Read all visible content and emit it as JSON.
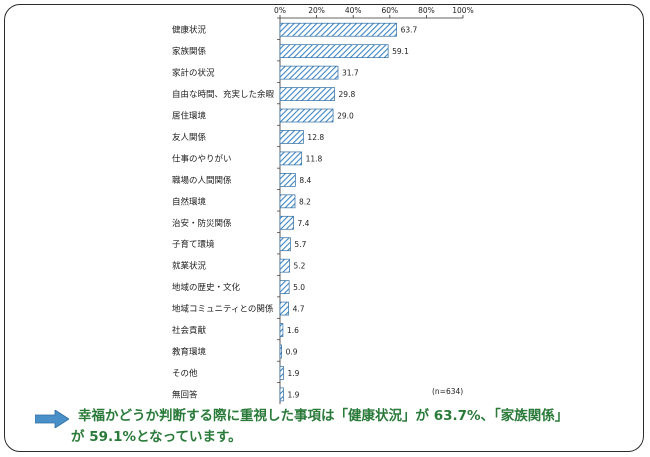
{
  "chart_data": {
    "type": "bar",
    "orientation": "horizontal",
    "categories": [
      "健康状況",
      "家族関係",
      "家計の状況",
      "自由な時間、充実した余暇",
      "居住環境",
      "友人関係",
      "仕事のやりがい",
      "職場の人間関係",
      "自然環境",
      "治安・防災関係",
      "子育て環境",
      "就業状況",
      "地域の歴史・文化",
      "地域コミュニティとの関係",
      "社会貢献",
      "教育環境",
      "その他",
      "無回答"
    ],
    "values": [
      63.7,
      59.1,
      31.7,
      29.8,
      29.0,
      12.8,
      11.8,
      8.4,
      8.2,
      7.4,
      5.7,
      5.2,
      5.0,
      4.7,
      1.6,
      0.9,
      1.9,
      1.9
    ],
    "value_labels": [
      "63.7",
      "59.1",
      "31.7",
      "29.8",
      "29.0",
      "12.8",
      "11.8",
      "8.4",
      "8.2",
      "7.4",
      "5.7",
      "5.2",
      "5.0",
      "4.7",
      "1.6",
      "0.9",
      "1.9",
      "1.9"
    ],
    "xticks": [
      "0%",
      "20%",
      "40%",
      "60%",
      "80%",
      "100%"
    ],
    "xlim": [
      0,
      100
    ],
    "grid": false,
    "bar_color": "#4a90c8",
    "note": "(n=634)"
  },
  "summary": {
    "line1": "幸福かどうか判断する際に重視した事項は「健康状況」が 63.7%、「家族関係」",
    "line2": "が 59.1%となっています。"
  },
  "colors": {
    "summary_text": "#2a7a3a",
    "arrow": "#4a90c8"
  }
}
